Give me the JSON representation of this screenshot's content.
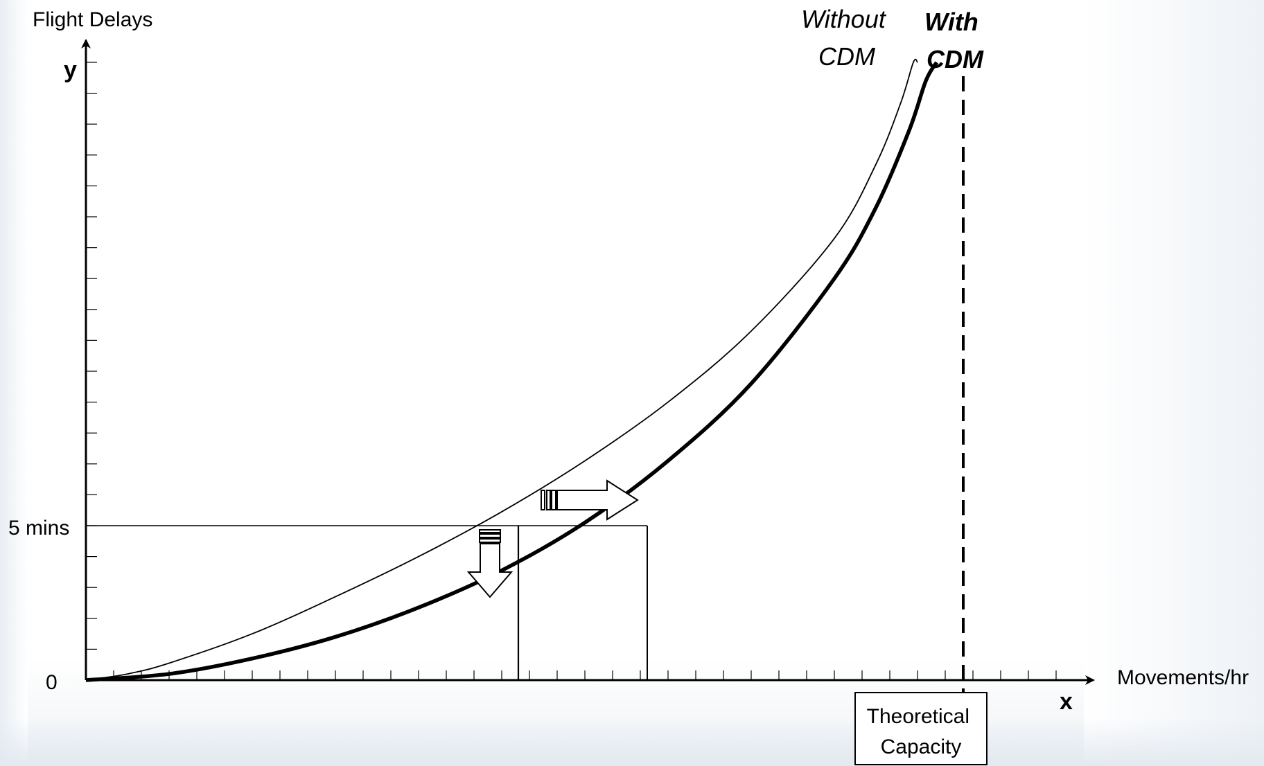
{
  "chart_data": {
    "type": "line",
    "title": "",
    "ylabel": "Flight Delays",
    "xlabel": "Movements/hr",
    "y_axis_letter": "y",
    "x_axis_letter": "x",
    "y_tick_labels": [
      "0",
      "5 mins"
    ],
    "y_tick_values": [
      0,
      5
    ],
    "ylim": [
      0,
      20
    ],
    "xlim": [
      0,
      100
    ],
    "series": [
      {
        "name": "Without CDM",
        "style": "thin",
        "x": [
          0,
          5,
          10,
          20,
          30,
          40,
          50,
          60,
          70,
          80,
          90,
          95,
          98,
          99.5,
          100
        ],
        "y": [
          0,
          0.2,
          0.55,
          1.5,
          2.7,
          4.0,
          5.45,
          7.1,
          9.0,
          11.3,
          14.3,
          16.7,
          18.7,
          20,
          20.0
        ]
      },
      {
        "name": "With CDM",
        "style": "thick",
        "x": [
          0,
          10,
          20,
          30,
          40,
          50,
          60,
          70,
          80,
          90,
          95,
          99,
          101,
          102.3
        ],
        "y": [
          0,
          0.2,
          0.7,
          1.4,
          2.35,
          3.55,
          5.1,
          7.1,
          9.6,
          13.0,
          15.3,
          17.8,
          19.4,
          20.0
        ]
      }
    ],
    "series_labels": {
      "without": "Without\nCDM",
      "with": "With\nCDM"
    },
    "reference_line": {
      "label": "Theoretical\nCapacity",
      "x": 105.5,
      "style": "dashed"
    },
    "annotations": [
      {
        "type": "horizontal",
        "y": 5,
        "x_from": 0,
        "x_to": 67.5
      },
      {
        "type": "vertical",
        "x": 52,
        "y_from": 0,
        "y_to": 5
      },
      {
        "type": "vertical",
        "x": 67.5,
        "y_from": 0,
        "y_to": 5
      },
      {
        "type": "arrow-right",
        "meaning": "capacity increase at 5 mins"
      },
      {
        "type": "arrow-down",
        "meaning": "delay reduction"
      }
    ],
    "colors": {
      "line": "#000000",
      "background": "#ffffff"
    },
    "grid": false,
    "legend": "none"
  }
}
